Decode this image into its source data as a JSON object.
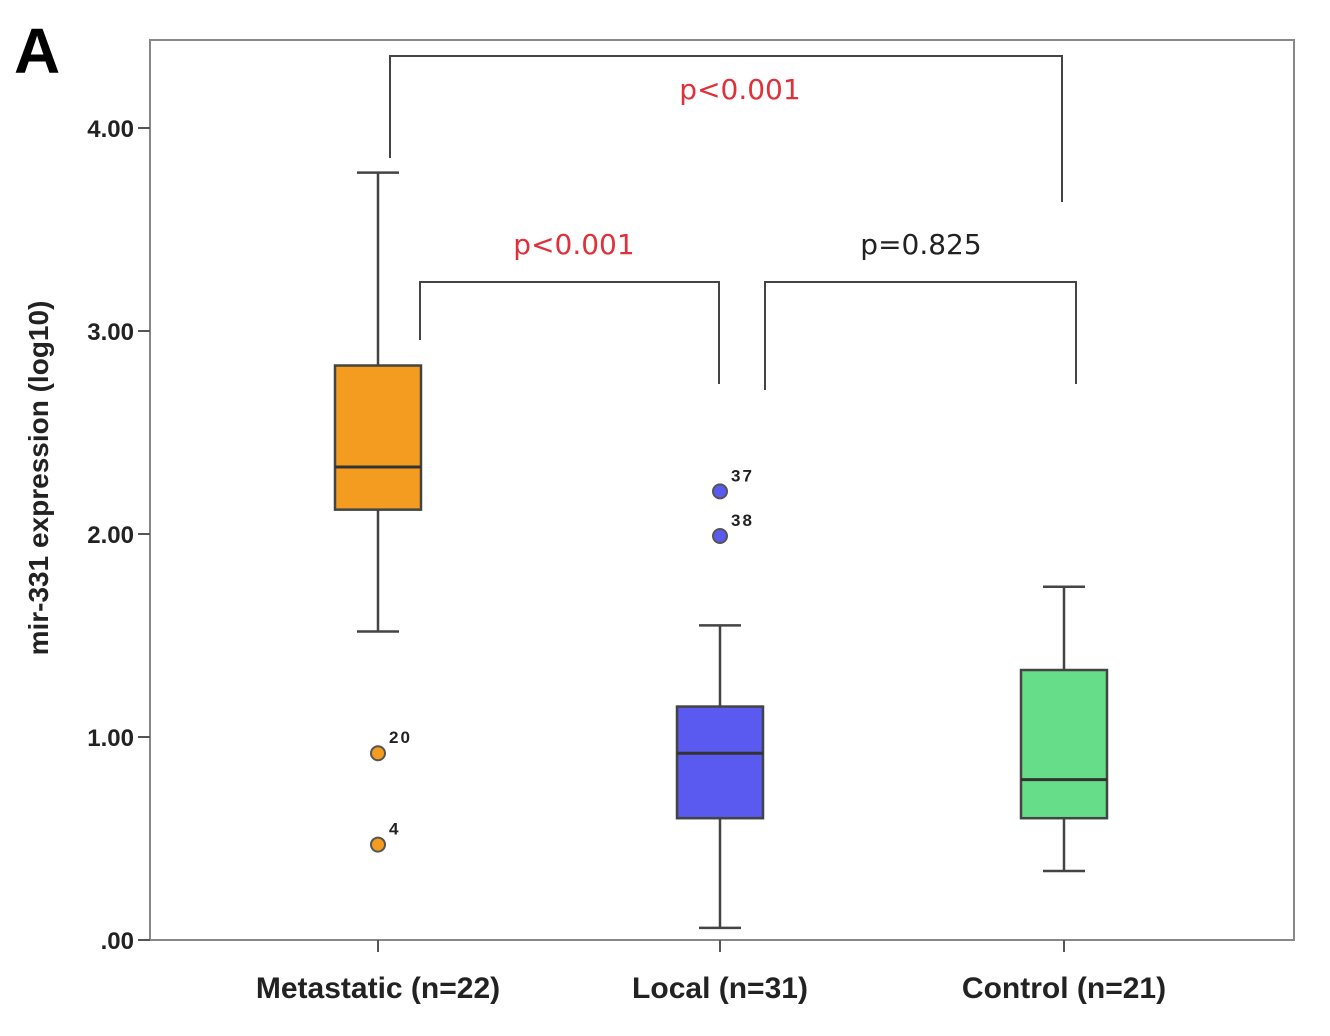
{
  "panel_label": "A",
  "chart_data": {
    "type": "box",
    "ylabel": "mir-331 expression (log10)",
    "xlabel": "",
    "ylim": [
      0,
      4.5
    ],
    "y_ticks": [
      {
        "value": 0,
        "label": ".00"
      },
      {
        "value": 1,
        "label": "1.00"
      },
      {
        "value": 2,
        "label": "2.00"
      },
      {
        "value": 3,
        "label": "3.00"
      },
      {
        "value": 4,
        "label": "4.00"
      }
    ],
    "grid": false,
    "groups": [
      {
        "category": "Metastatic (n=22)",
        "color": "#f39c1f",
        "whisker_low": 1.52,
        "q1": 2.12,
        "median": 2.33,
        "q3": 2.83,
        "whisker_high": 3.78,
        "outliers": [
          {
            "label": "20",
            "value": 0.92
          },
          {
            "label": "4",
            "value": 0.47
          }
        ]
      },
      {
        "category": "Local (n=31)",
        "color": "#5a5af0",
        "whisker_low": 0.06,
        "q1": 0.6,
        "median": 0.92,
        "q3": 1.15,
        "whisker_high": 1.55,
        "outliers": [
          {
            "label": "37",
            "value": 2.21
          },
          {
            "label": "38",
            "value": 1.99
          }
        ]
      },
      {
        "category": "Control (n=21)",
        "color": "#66dd88",
        "whisker_low": 0.34,
        "q1": 0.6,
        "median": 0.79,
        "q3": 1.33,
        "whisker_high": 1.74,
        "outliers": []
      }
    ],
    "comparisons": [
      {
        "from": 0,
        "to": 2,
        "label": "p<0.001",
        "color": "#e0303a"
      },
      {
        "from": 0,
        "to": 1,
        "label": "p<0.001",
        "color": "#e0303a"
      },
      {
        "from": 1,
        "to": 2,
        "label": "p=0.825",
        "color": "#222222"
      }
    ]
  }
}
